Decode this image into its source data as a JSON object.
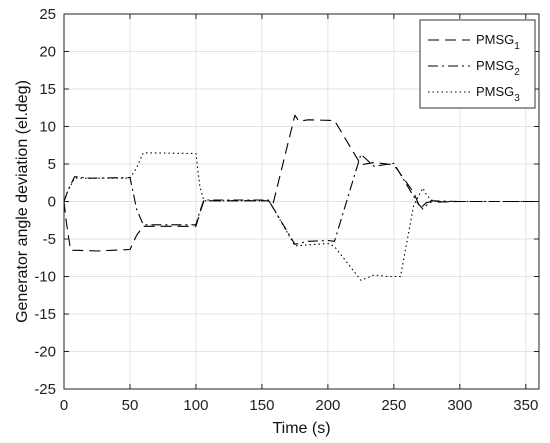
{
  "chart_data": {
    "type": "line",
    "xlabel": "Time (s)",
    "ylabel": "Generator angle deviation (el.deg)",
    "xlim": [
      0,
      360
    ],
    "ylim": [
      -25,
      25
    ],
    "xticks": [
      0,
      50,
      100,
      150,
      200,
      250,
      300,
      350
    ],
    "yticks": [
      -25,
      -20,
      -15,
      -10,
      -5,
      0,
      5,
      10,
      15,
      20,
      25
    ],
    "grid": true,
    "legend": {
      "position": "top-right",
      "entries": [
        {
          "base": "PMSG",
          "sub": "1",
          "dash": "dashed"
        },
        {
          "base": "PMSG",
          "sub": "2",
          "dash": "dashdot"
        },
        {
          "base": "PMSG",
          "sub": "3",
          "dash": "dotted"
        }
      ]
    },
    "series": [
      {
        "name": "PMSG1",
        "style": "dashed",
        "x": [
          0,
          2,
          5,
          10,
          25,
          50,
          55,
          60,
          100,
          103,
          106,
          155,
          158,
          175,
          178,
          185,
          205,
          225,
          235,
          250,
          265,
          270,
          275,
          300,
          360
        ],
        "y": [
          0,
          -3,
          -6.5,
          -6.5,
          -6.6,
          -6.4,
          -4.5,
          -3.3,
          -3.3,
          -1.5,
          0.1,
          0.1,
          -0.6,
          11.5,
          10.7,
          10.9,
          10.8,
          4.9,
          5.2,
          4.9,
          1.2,
          -0.9,
          -0.1,
          0,
          0
        ]
      },
      {
        "name": "PMSG2",
        "style": "dashdot",
        "x": [
          0,
          3,
          8,
          20,
          50,
          55,
          60,
          100,
          103,
          106,
          155,
          158,
          175,
          185,
          200,
          205,
          225,
          235,
          250,
          268,
          272,
          278,
          300,
          360
        ],
        "y": [
          0,
          1.5,
          3.3,
          3.1,
          3.2,
          -1,
          -3.1,
          -3.1,
          -1.3,
          0.2,
          0.2,
          -0.7,
          -5.7,
          -5.3,
          -5.2,
          -5.3,
          6.3,
          4.7,
          5.1,
          -0.2,
          -1,
          0.1,
          0,
          0
        ]
      },
      {
        "name": "PMSG3",
        "style": "dotted",
        "x": [
          0,
          3,
          8,
          50,
          55,
          60,
          100,
          103,
          106,
          155,
          158,
          175,
          200,
          205,
          225,
          235,
          245,
          255,
          265,
          272,
          275,
          280,
          300,
          360
        ],
        "y": [
          0,
          1.5,
          3.1,
          3.1,
          4.5,
          6.5,
          6.4,
          2,
          0.1,
          0.1,
          -0.7,
          -5.9,
          -5.6,
          -6,
          -10.5,
          -9.8,
          -10,
          -10,
          -0.5,
          1.8,
          0.8,
          0,
          0,
          0
        ]
      }
    ]
  }
}
